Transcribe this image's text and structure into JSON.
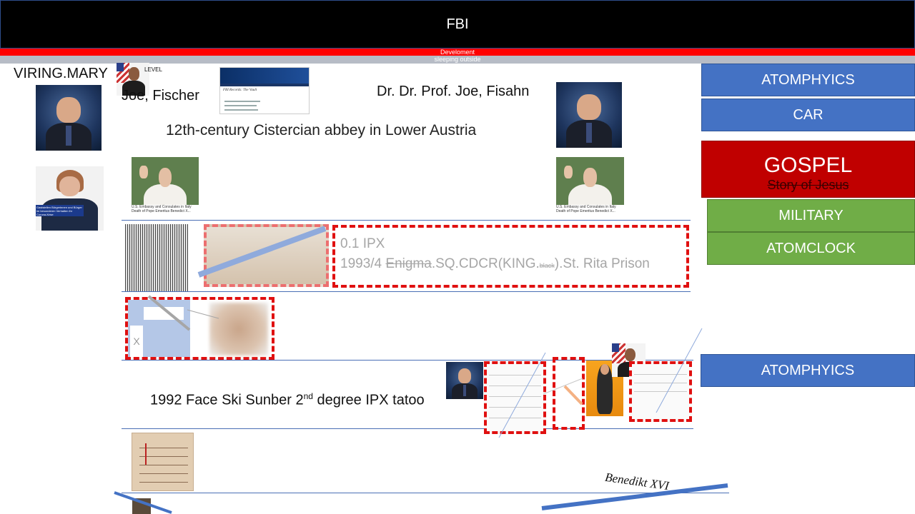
{
  "header": {
    "title": "FBI",
    "red_bar_text": "Develoment",
    "grey_bar_text": "sleeping outside"
  },
  "labels": {
    "viring_mary": "VIRING.MARY",
    "level": "LEVEL",
    "joe_fischer": "Joe, Fischer",
    "joe_fisahn": "Dr. Dr. Prof. Joe, Fisahn",
    "abbey": "12th-century Cistercian abbey in Lower Austria",
    "ipx_line1": "0.1 IPX",
    "ipx_prefix": "1993/4 ",
    "ipx_enigma": "Enigma",
    "ipx_mid": ".SQ.CDCR(KING.",
    "ipx_black": "black",
    "ipx_suffix": ").St. Rita Prison",
    "x_mark": "X",
    "face_ski_prefix": "1992 Face Ski Sunber 2",
    "face_ski_sup": "nd",
    "face_ski_suffix": " degree IPX tatoo",
    "signature": "Benedikt XVI",
    "pope_caption_1": "U.S. Embassy and Consulates in Italy",
    "pope_caption_2": "Death of Pope Emeritus Benedict X...",
    "fbi_vault_title": "FBI Records: The Vault",
    "officer_caption": "Gaststellen Bürgerinnen und Bürger im besonderen Verhalten ihr Corona-Krise"
  },
  "side_buttons": {
    "atomphyics_top": "ATOMPHYICS",
    "car": "CAR",
    "gospel": "GOSPEL",
    "gospel_sub": "Story of Jesus",
    "military": "MILITARY",
    "atomclock": "ATOMCLOCK",
    "atomphyics_bottom": "ATOMPHYICS"
  },
  "colors": {
    "header_bg": "#000000",
    "red_bar": "#ff0000",
    "blue_button": "#4472c4",
    "red_button": "#c00000",
    "green_button": "#70ad47",
    "dashed_border": "#e01010",
    "rule_line": "#4a6fb5"
  }
}
